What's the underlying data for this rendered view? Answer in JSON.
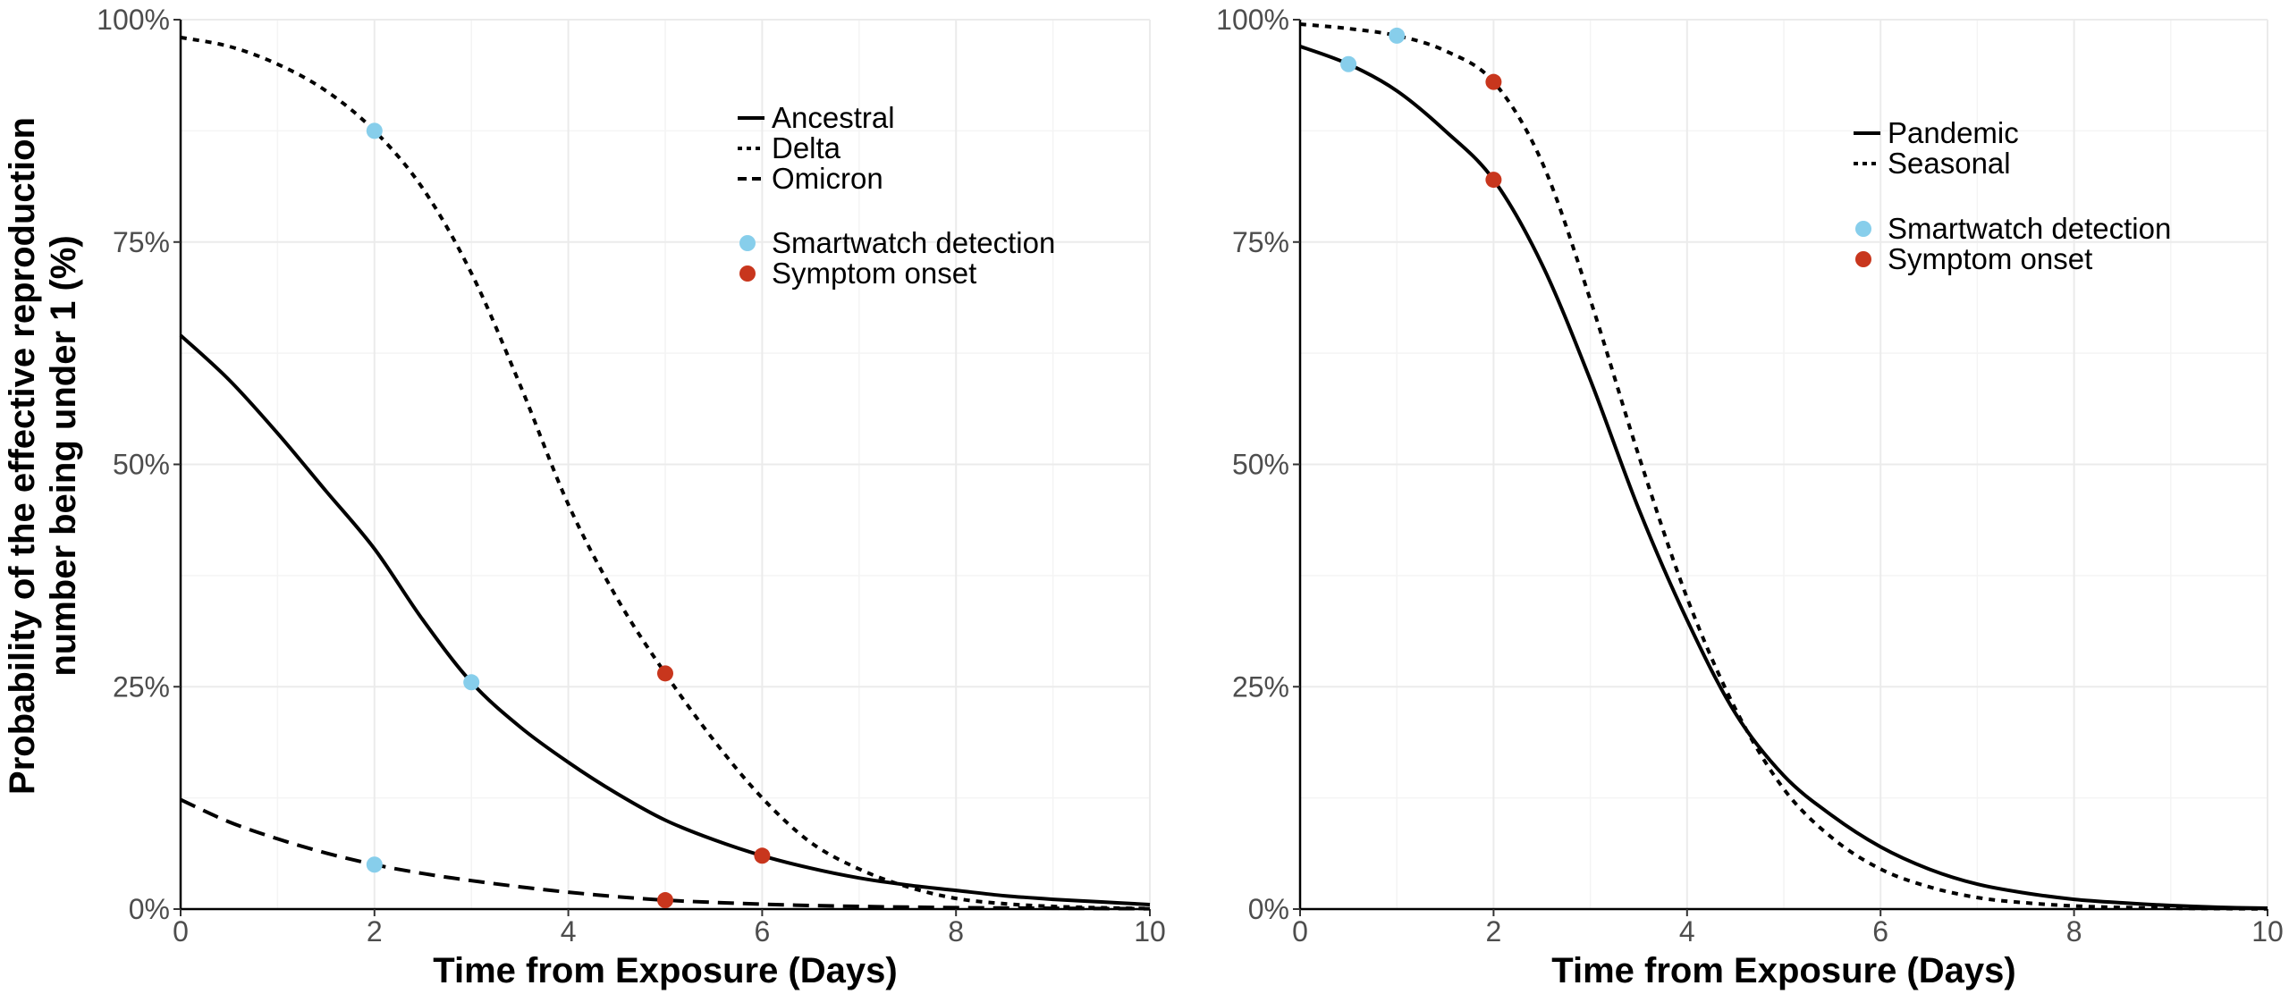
{
  "figure": {
    "ylabel_line1": "Probability of the effective reproduction",
    "ylabel_line2": "number being under 1 (%)"
  },
  "colors": {
    "smartwatch": "#87ceeb",
    "symptom": "#c8361d",
    "line": "#000000"
  },
  "chart_data": [
    {
      "type": "line",
      "panel": "left",
      "xlabel": "Time from Exposure (Days)",
      "ylabel": "Probability of the effective reproduction number being under 1 (%)",
      "xlim": [
        0,
        10
      ],
      "ylim": [
        0,
        100
      ],
      "x_ticks": [
        0,
        2,
        4,
        6,
        8,
        10
      ],
      "y_ticks": [
        0,
        25,
        50,
        75,
        100
      ],
      "y_tick_labels": [
        "0%",
        "25%",
        "50%",
        "75%",
        "100%"
      ],
      "grid": true,
      "legend_position": "top-right",
      "series": [
        {
          "name": "Ancestral",
          "dash": "solid",
          "x": [
            0,
            0.5,
            1,
            1.5,
            2,
            2.5,
            3,
            3.5,
            4,
            4.5,
            5,
            5.5,
            6,
            6.5,
            7,
            7.5,
            8,
            8.5,
            9,
            9.5,
            10
          ],
          "y": [
            64.5,
            59.5,
            53.5,
            47,
            40.5,
            32.5,
            25.5,
            20.5,
            16.5,
            13,
            10,
            7.8,
            6,
            4.6,
            3.5,
            2.7,
            2.1,
            1.5,
            1.1,
            0.8,
            0.5
          ]
        },
        {
          "name": "Delta",
          "dash": "dotted",
          "x": [
            0,
            0.5,
            1,
            1.5,
            2,
            2.5,
            3,
            3.5,
            4,
            4.5,
            5,
            5.5,
            6,
            6.5,
            7,
            7.5,
            8,
            8.5,
            9,
            9.5,
            10
          ],
          "y": [
            98,
            97,
            95,
            92,
            87.5,
            81,
            71.5,
            59,
            45.5,
            35,
            26.5,
            19,
            12.5,
            7.5,
            4.5,
            2.5,
            1.2,
            0.6,
            0.3,
            0.15,
            0.05
          ]
        },
        {
          "name": "Omicron",
          "dash": "dashed",
          "x": [
            0,
            0.5,
            1,
            1.5,
            2,
            2.5,
            3,
            3.5,
            4,
            4.5,
            5,
            5.5,
            6,
            6.5,
            7,
            7.5,
            8,
            8.5,
            9,
            9.5,
            10
          ],
          "y": [
            12.3,
            9.8,
            7.9,
            6.3,
            5,
            4,
            3.2,
            2.5,
            1.9,
            1.4,
            1,
            0.75,
            0.55,
            0.4,
            0.3,
            0.22,
            0.16,
            0.12,
            0.09,
            0.06,
            0.04
          ]
        }
      ],
      "points": [
        {
          "series": "Delta",
          "kind": "smartwatch",
          "x": 2,
          "y": 87.5
        },
        {
          "series": "Ancestral",
          "kind": "smartwatch",
          "x": 3,
          "y": 25.5
        },
        {
          "series": "Omicron",
          "kind": "smartwatch",
          "x": 2,
          "y": 5
        },
        {
          "series": "Delta",
          "kind": "symptom",
          "x": 5,
          "y": 26.5
        },
        {
          "series": "Ancestral",
          "kind": "symptom",
          "x": 6,
          "y": 6
        },
        {
          "series": "Omicron",
          "kind": "symptom",
          "x": 5,
          "y": 1
        }
      ],
      "legend_lines": [
        "Ancestral",
        "Delta",
        "Omicron"
      ],
      "legend_points": [
        "Smartwatch detection",
        "Symptom onset"
      ]
    },
    {
      "type": "line",
      "panel": "right",
      "xlabel": "Time from Exposure (Days)",
      "xlim": [
        0,
        10
      ],
      "ylim": [
        0,
        100
      ],
      "x_ticks": [
        0,
        2,
        4,
        6,
        8,
        10
      ],
      "y_ticks": [
        0,
        25,
        50,
        75,
        100
      ],
      "y_tick_labels": [
        "0%",
        "25%",
        "50%",
        "75%",
        "100%"
      ],
      "grid": true,
      "legend_position": "top-right",
      "series": [
        {
          "name": "Pandemic",
          "dash": "solid",
          "x": [
            0,
            0.5,
            1,
            1.5,
            2,
            2.5,
            3,
            3.5,
            4,
            4.5,
            5,
            5.5,
            6,
            6.5,
            7,
            7.5,
            8,
            8.5,
            9,
            9.5,
            10
          ],
          "y": [
            97,
            95,
            92,
            87.5,
            82,
            72.5,
            59.5,
            45,
            32.5,
            22,
            15,
            10.5,
            7,
            4.5,
            2.8,
            1.8,
            1.1,
            0.7,
            0.4,
            0.2,
            0.1
          ]
        },
        {
          "name": "Seasonal",
          "dash": "dotted",
          "x": [
            0,
            0.5,
            1,
            1.5,
            2,
            2.5,
            3,
            3.5,
            4,
            4.5,
            5,
            5.5,
            6,
            6.5,
            7,
            7.5,
            8,
            8.5,
            9,
            9.5,
            10
          ],
          "y": [
            99.5,
            99,
            98.2,
            96.5,
            93,
            84,
            68.5,
            51,
            35,
            22.5,
            13.5,
            8,
            4.5,
            2.5,
            1.3,
            0.7,
            0.35,
            0.18,
            0.09,
            0.05,
            0.02
          ]
        }
      ],
      "points": [
        {
          "series": "Pandemic",
          "kind": "smartwatch",
          "x": 0.5,
          "y": 95
        },
        {
          "series": "Seasonal",
          "kind": "smartwatch",
          "x": 1,
          "y": 98.2
        },
        {
          "series": "Seasonal",
          "kind": "symptom",
          "x": 2,
          "y": 93
        },
        {
          "series": "Pandemic",
          "kind": "symptom",
          "x": 2,
          "y": 82
        }
      ],
      "legend_lines": [
        "Pandemic",
        "Seasonal"
      ],
      "legend_points": [
        "Smartwatch detection",
        "Symptom onset"
      ]
    }
  ]
}
